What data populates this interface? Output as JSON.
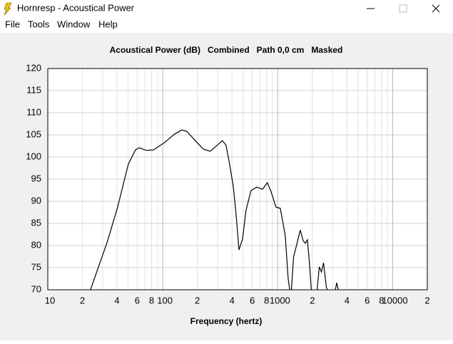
{
  "window": {
    "title": "Hornresp - Acoustical Power",
    "menu": [
      "File",
      "Tools",
      "Window",
      "Help"
    ]
  },
  "chart_data": {
    "type": "line",
    "title": "Acoustical Power (dB)   Combined   Path 0,0 cm   Masked",
    "x_label": "Frequency (hertz)",
    "log_x": true,
    "grid": true,
    "xlim": [
      10,
      20000
    ],
    "ylim": [
      70,
      120
    ],
    "xticks": [
      10,
      {
        "value": 20,
        "label": "2"
      },
      {
        "value": 40,
        "label": "4"
      },
      {
        "value": 60,
        "label": "6"
      },
      {
        "value": 80,
        "label": "8"
      },
      100,
      {
        "value": 200,
        "label": "2"
      },
      {
        "value": 400,
        "label": "4"
      },
      {
        "value": 600,
        "label": "6"
      },
      {
        "value": 800,
        "label": "8"
      },
      1000,
      {
        "value": 2000,
        "label": "2"
      },
      {
        "value": 4000,
        "label": "4"
      },
      {
        "value": 6000,
        "label": "6"
      },
      {
        "value": 8000,
        "label": "8"
      },
      10000,
      {
        "value": 20000,
        "label": "2"
      }
    ],
    "yticks": [
      70,
      75,
      80,
      85,
      90,
      95,
      100,
      105,
      110,
      115,
      120
    ],
    "series": [
      {
        "color": "#000000",
        "x": [
          23.5,
          32.7,
          40.5,
          50.2,
          57.9,
          62.2,
          71.8,
          82.8,
          102.7,
          127,
          146,
          162,
          195,
          225,
          259,
          290,
          330,
          355,
          381,
          410,
          434,
          460,
          494,
          529,
          585,
          656,
          736,
          812,
          872,
          965,
          1052,
          1162,
          1232,
          1270,
          null,
          1316,
          1373,
          1450,
          1570,
          1663,
          1735,
          1810,
          1890,
          1960,
          null,
          2200,
          2300,
          2400,
          2500,
          2650,
          2700,
          null,
          3170,
          3260,
          3360
        ],
        "values": [
          70,
          80.6,
          88.7,
          98.4,
          101.6,
          102.1,
          101.5,
          101.6,
          103.2,
          105.2,
          106.1,
          105.8,
          103.5,
          101.8,
          101.3,
          102.4,
          103.7,
          102.7,
          98.4,
          93.5,
          87.1,
          79.0,
          81.5,
          87.9,
          92.4,
          93.2,
          92.7,
          94.2,
          92.3,
          88.7,
          88.4,
          82.3,
          72.6,
          70,
          null,
          70,
          77.4,
          79.8,
          83.5,
          81.1,
          80.5,
          81.3,
          75.8,
          70,
          null,
          70,
          75.2,
          74.0,
          76.1,
          70.6,
          70,
          null,
          70,
          71.6,
          70
        ]
      }
    ]
  }
}
